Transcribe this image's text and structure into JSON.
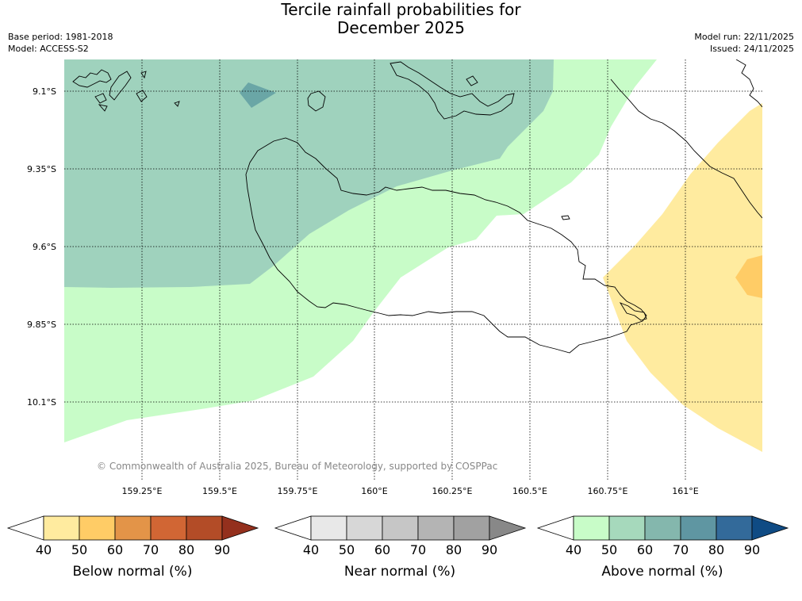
{
  "title": {
    "line1": "Tercile rainfall probabilities for",
    "line2": "December 2025"
  },
  "meta": {
    "base_period": "Base period: 1981-2018",
    "model": "Model: ACCESS-S2",
    "model_run": "Model run: 22/11/2025",
    "issued": "Issued: 24/11/2025"
  },
  "map": {
    "lat_labels": [
      "9.1°S",
      "9.35°S",
      "9.6°S",
      "9.85°S",
      "10.1°S"
    ],
    "lon_labels": [
      "159.25°E",
      "159.5°E",
      "159.75°E",
      "160°E",
      "160.25°E",
      "160.5°E",
      "160.75°E",
      "161°E"
    ],
    "copyright": "© Commonwealth of Australia 2025, Bureau of Meteorology, supported by COSPPac",
    "colors": {
      "above_50": "#c8fcc8",
      "above_60": "#9fd2bd",
      "above_70": "#6aa6a6",
      "below_50": "#ffeb9f",
      "below_60": "#ffcc66"
    }
  },
  "colorbars": [
    {
      "name": "below-normal",
      "label": "Below normal (%)",
      "ticks": [
        "40",
        "50",
        "60",
        "70",
        "80",
        "90"
      ],
      "colors": [
        "#ffffff",
        "#ffeb9f",
        "#ffcc66",
        "#e39448",
        "#d16634",
        "#b34c27",
        "#94301d"
      ]
    },
    {
      "name": "near-normal",
      "label": "Near normal (%)",
      "ticks": [
        "40",
        "50",
        "60",
        "70",
        "80",
        "90"
      ],
      "colors": [
        "#ffffff",
        "#e8e8e8",
        "#d7d7d7",
        "#c6c6c6",
        "#b4b4b4",
        "#a1a1a1",
        "#888888"
      ]
    },
    {
      "name": "above-normal",
      "label": "Above normal (%)",
      "ticks": [
        "40",
        "50",
        "60",
        "70",
        "80",
        "90"
      ],
      "colors": [
        "#ffffff",
        "#c8fcc8",
        "#a6d9bc",
        "#84b7ad",
        "#5f96a2",
        "#336a9a",
        "#0f4b84"
      ]
    }
  ]
}
